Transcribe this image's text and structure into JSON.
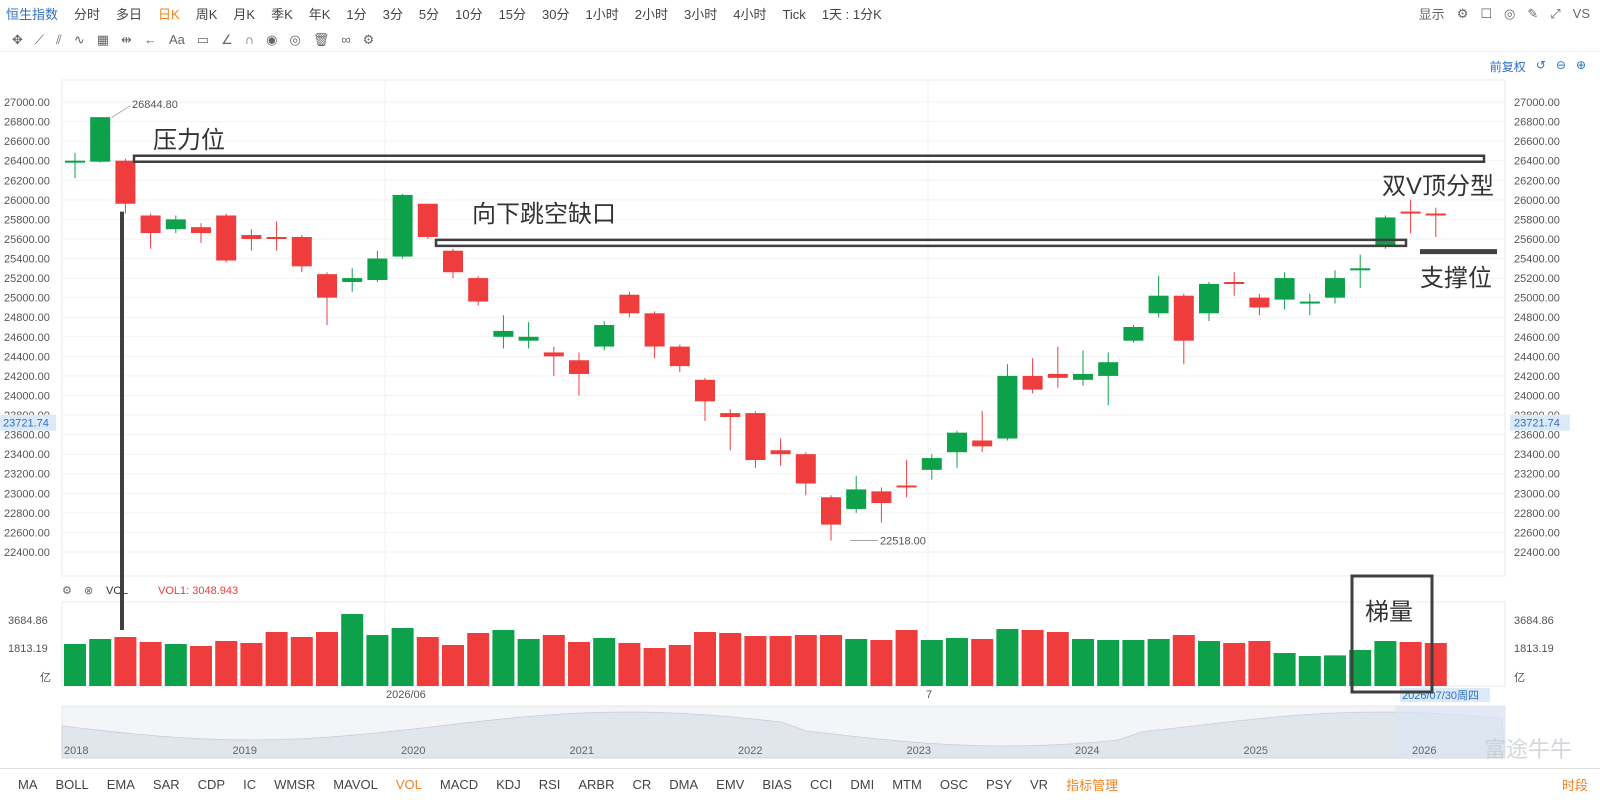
{
  "topbar": {
    "symbol": "恒生指数",
    "periods": [
      "分时",
      "多日",
      "日K",
      "周K",
      "月K",
      "季K",
      "年K",
      "1分",
      "3分",
      "5分",
      "10分",
      "15分",
      "30分",
      "1小时",
      "2小时",
      "3小时",
      "4小时",
      "Tick",
      "1天 : 1分K"
    ],
    "active_period": "日K",
    "display_label": "显示",
    "vs_label": "VS"
  },
  "adjust": {
    "label": "前复权"
  },
  "price_axis": {
    "ticks": [
      27000,
      26800,
      26600,
      26400,
      26200,
      26000,
      25800,
      25600,
      25400,
      25200,
      25000,
      24800,
      24600,
      24400,
      24200,
      24000,
      23800,
      23600,
      23400,
      23200,
      23000,
      22800,
      22600,
      22400
    ],
    "current": "23721.74"
  },
  "vol_axis": {
    "ticks": [
      "3684.86",
      "1813.19"
    ],
    "unit": "亿"
  },
  "vol_header": {
    "name": "VOL",
    "vol1_label": "VOL1:",
    "vol1_value": "3048.943"
  },
  "labels": {
    "high_point": "26844.80",
    "low_point": "22518.00",
    "resistance": "压力位",
    "gap": "向下跳空缺口",
    "double_v": "双V顶分型",
    "support": "支撑位",
    "ladder_vol": "梯量",
    "date_mark_1": "2026/06",
    "date_mark_2": "7",
    "date_mark_3": "2026/07/30周四"
  },
  "overview_years": [
    "2018",
    "2019",
    "2020",
    "2021",
    "2022",
    "2023",
    "2024",
    "2025",
    "2026"
  ],
  "bottom_tabs": [
    "MA",
    "BOLL",
    "EMA",
    "SAR",
    "CDP",
    "IC",
    "WMSR",
    "MAVOL",
    "VOL",
    "MACD",
    "KDJ",
    "RSI",
    "ARBR",
    "CR",
    "DMA",
    "EMV",
    "BIAS",
    "CCI",
    "DMI",
    "MTM",
    "OSC",
    "PSY",
    "VR",
    "指标管理"
  ],
  "active_tab": "VOL",
  "time_segment": "时段",
  "watermark": "富途牛牛",
  "colors": {
    "up": "#0ca14a",
    "down": "#ef3d3d",
    "accent": "#f0831e",
    "link": "#2d6fc4"
  },
  "chart_data": {
    "type": "candlestick",
    "candles": [
      {
        "o": 26380,
        "c": 26400,
        "h": 26480,
        "l": 26220,
        "v": 2100
      },
      {
        "o": 26390,
        "c": 26845,
        "h": 26845,
        "l": 26380,
        "v": 2350
      },
      {
        "o": 26400,
        "c": 25960,
        "h": 26420,
        "l": 25860,
        "v": 2450
      },
      {
        "o": 25840,
        "c": 25660,
        "h": 25860,
        "l": 25500,
        "v": 2200
      },
      {
        "o": 25700,
        "c": 25800,
        "h": 25840,
        "l": 25660,
        "v": 2100
      },
      {
        "o": 25720,
        "c": 25660,
        "h": 25760,
        "l": 25560,
        "v": 2000
      },
      {
        "o": 25840,
        "c": 25380,
        "h": 25860,
        "l": 25360,
        "v": 2250
      },
      {
        "o": 25640,
        "c": 25600,
        "h": 25700,
        "l": 25480,
        "v": 2150
      },
      {
        "o": 25620,
        "c": 25600,
        "h": 25780,
        "l": 25480,
        "v": 2700
      },
      {
        "o": 25620,
        "c": 25320,
        "h": 25640,
        "l": 25260,
        "v": 2450
      },
      {
        "o": 25240,
        "c": 25000,
        "h": 25260,
        "l": 24720,
        "v": 2700
      },
      {
        "o": 25160,
        "c": 25200,
        "h": 25300,
        "l": 25060,
        "v": 3600
      },
      {
        "o": 25180,
        "c": 25400,
        "h": 25480,
        "l": 25160,
        "v": 2550
      },
      {
        "o": 25420,
        "c": 26050,
        "h": 26060,
        "l": 25400,
        "v": 2900
      },
      {
        "o": 25960,
        "c": 25620,
        "h": 25960,
        "l": 25600,
        "v": 2450
      },
      {
        "o": 25480,
        "c": 25260,
        "h": 25500,
        "l": 25200,
        "v": 2050
      },
      {
        "o": 25200,
        "c": 24960,
        "h": 25220,
        "l": 24920,
        "v": 2650
      },
      {
        "o": 24600,
        "c": 24660,
        "h": 24820,
        "l": 24480,
        "v": 2800
      },
      {
        "o": 24560,
        "c": 24600,
        "h": 24750,
        "l": 24480,
        "v": 2350
      },
      {
        "o": 24440,
        "c": 24400,
        "h": 24500,
        "l": 24200,
        "v": 2550
      },
      {
        "o": 24360,
        "c": 24220,
        "h": 24440,
        "l": 24000,
        "v": 2200
      },
      {
        "o": 24500,
        "c": 24720,
        "h": 24760,
        "l": 24460,
        "v": 2400
      },
      {
        "o": 25030,
        "c": 24840,
        "h": 25060,
        "l": 24800,
        "v": 2150
      },
      {
        "o": 24840,
        "c": 24500,
        "h": 24860,
        "l": 24380,
        "v": 1900
      },
      {
        "o": 24500,
        "c": 24300,
        "h": 24520,
        "l": 24240,
        "v": 2050
      },
      {
        "o": 24160,
        "c": 23940,
        "h": 24180,
        "l": 23740,
        "v": 2700
      },
      {
        "o": 23820,
        "c": 23780,
        "h": 23860,
        "l": 23440,
        "v": 2650
      },
      {
        "o": 23820,
        "c": 23340,
        "h": 23840,
        "l": 23260,
        "v": 2500
      },
      {
        "o": 23440,
        "c": 23400,
        "h": 23560,
        "l": 23280,
        "v": 2500
      },
      {
        "o": 23400,
        "c": 23100,
        "h": 23420,
        "l": 22980,
        "v": 2550
      },
      {
        "o": 22960,
        "c": 22680,
        "h": 22980,
        "l": 22518,
        "v": 2550
      },
      {
        "o": 22840,
        "c": 23040,
        "h": 23180,
        "l": 22800,
        "v": 2350
      },
      {
        "o": 23020,
        "c": 22900,
        "h": 23060,
        "l": 22700,
        "v": 2300
      },
      {
        "o": 23080,
        "c": 23060,
        "h": 23340,
        "l": 22960,
        "v": 2800
      },
      {
        "o": 23240,
        "c": 23360,
        "h": 23400,
        "l": 23140,
        "v": 2300
      },
      {
        "o": 23420,
        "c": 23620,
        "h": 23640,
        "l": 23260,
        "v": 2400
      },
      {
        "o": 23540,
        "c": 23480,
        "h": 23840,
        "l": 23420,
        "v": 2350
      },
      {
        "o": 23560,
        "c": 24200,
        "h": 24320,
        "l": 23540,
        "v": 2850
      },
      {
        "o": 24200,
        "c": 24060,
        "h": 24380,
        "l": 24020,
        "v": 2800
      },
      {
        "o": 24220,
        "c": 24180,
        "h": 24500,
        "l": 24080,
        "v": 2700
      },
      {
        "o": 24160,
        "c": 24220,
        "h": 24460,
        "l": 24100,
        "v": 2350
      },
      {
        "o": 24200,
        "c": 24340,
        "h": 24440,
        "l": 23900,
        "v": 2300
      },
      {
        "o": 24560,
        "c": 24700,
        "h": 24720,
        "l": 24540,
        "v": 2300
      },
      {
        "o": 24840,
        "c": 25020,
        "h": 25220,
        "l": 24800,
        "v": 2350
      },
      {
        "o": 25020,
        "c": 24560,
        "h": 25040,
        "l": 24320,
        "v": 2550
      },
      {
        "o": 24840,
        "c": 25140,
        "h": 25160,
        "l": 24760,
        "v": 2250
      },
      {
        "o": 25160,
        "c": 25140,
        "h": 25260,
        "l": 25020,
        "v": 2150
      },
      {
        "o": 25000,
        "c": 24900,
        "h": 25040,
        "l": 24820,
        "v": 2250
      },
      {
        "o": 24980,
        "c": 25200,
        "h": 25260,
        "l": 24880,
        "v": 1650
      },
      {
        "o": 24940,
        "c": 24960,
        "h": 25040,
        "l": 24820,
        "v": 1500
      },
      {
        "o": 25000,
        "c": 25200,
        "h": 25280,
        "l": 24940,
        "v": 1530
      },
      {
        "o": 25280,
        "c": 25300,
        "h": 25440,
        "l": 25100,
        "v": 1800
      },
      {
        "o": 25520,
        "c": 25820,
        "h": 25840,
        "l": 25500,
        "v": 2250
      },
      {
        "o": 25880,
        "c": 25860,
        "h": 26000,
        "l": 25660,
        "v": 2200
      },
      {
        "o": 25860,
        "c": 25840,
        "h": 25920,
        "l": 25620,
        "v": 2150
      }
    ]
  }
}
